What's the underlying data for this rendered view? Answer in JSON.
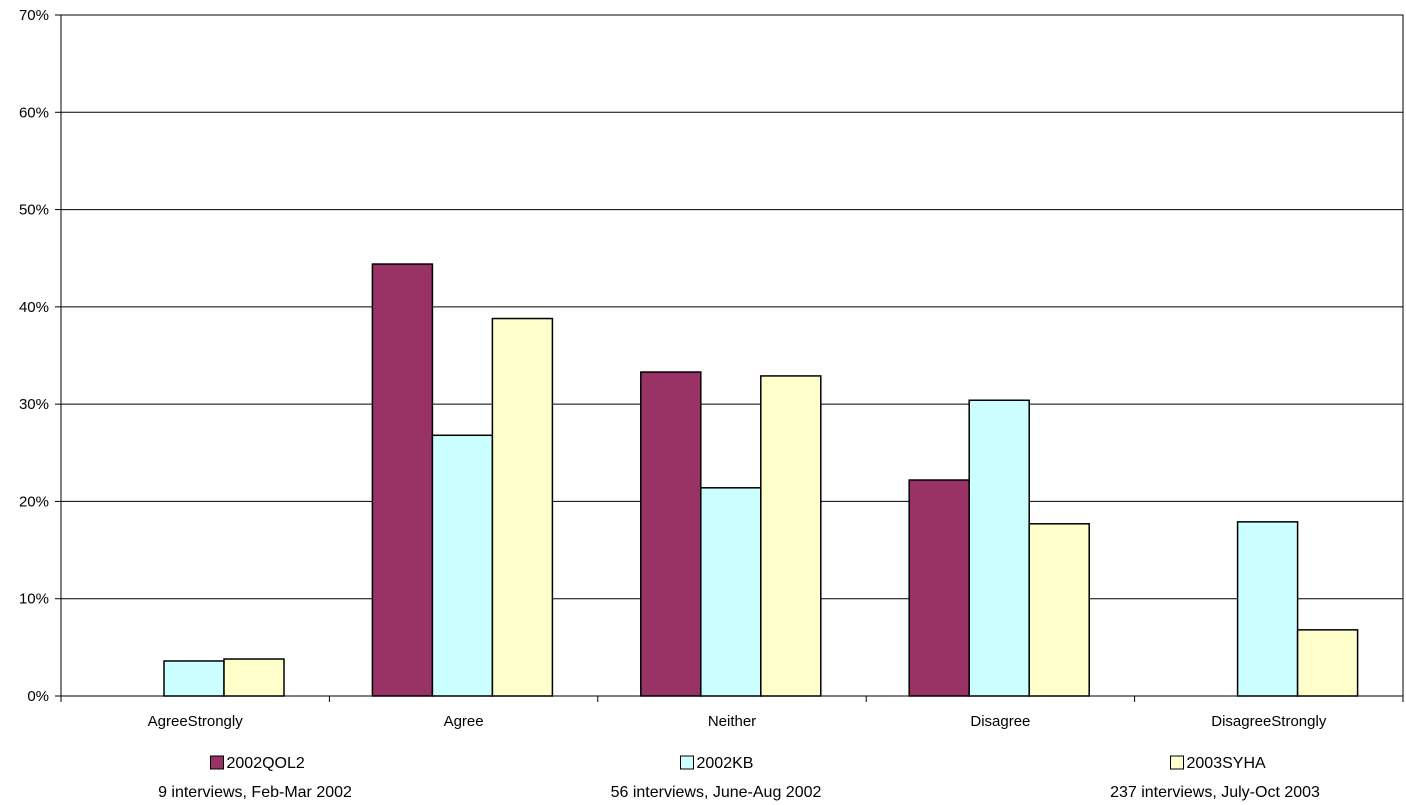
{
  "chart_data": {
    "type": "bar",
    "title": "",
    "xlabel": "",
    "ylabel": "",
    "categories": [
      "AgreeStrongly",
      "Agree",
      "Neither",
      "Disagree",
      "DisagreeStrongly"
    ],
    "ylim": [
      0,
      70
    ],
    "y_ticks": [
      0,
      10,
      20,
      30,
      40,
      50,
      60,
      70
    ],
    "y_tick_suffix": "%",
    "grid": "horizontal",
    "legend_position": "bottom",
    "series": [
      {
        "name": "2002QOL2",
        "subtitle": "9 interviews, Feb-Mar 2002",
        "color": "#993366",
        "values": [
          0,
          44.4,
          33.3,
          22.2,
          0
        ]
      },
      {
        "name": "2002KB",
        "subtitle": "56 interviews, June-Aug 2002",
        "color": "#CCFFFF",
        "values": [
          3.6,
          26.8,
          21.4,
          30.4,
          17.9
        ]
      },
      {
        "name": "2003SYHA",
        "subtitle": "237 interviews, July-Oct 2003",
        "color": "#FFFFCC",
        "values": [
          3.8,
          38.8,
          32.9,
          17.7,
          6.8
        ]
      }
    ]
  }
}
